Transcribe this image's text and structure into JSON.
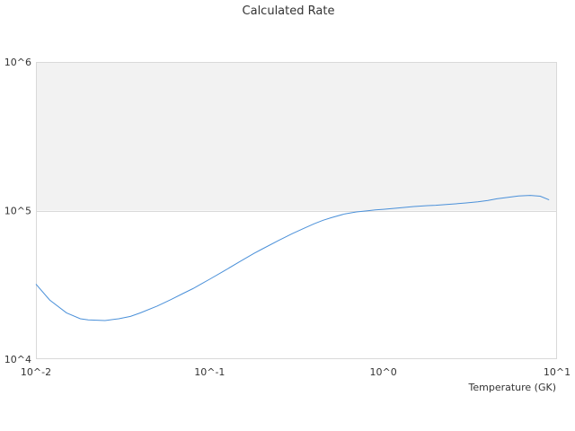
{
  "chart_data": {
    "type": "line",
    "title": "Calculated Rate",
    "xlabel": "Temperature (GK)",
    "ylabel": "",
    "x_scale": "log",
    "y_scale": "log",
    "xlim": [
      0.01,
      10
    ],
    "ylim": [
      10000,
      1000000
    ],
    "x_tick_labels": [
      "10^-2",
      "10^-1",
      "10^0",
      "10^1"
    ],
    "y_tick_labels": [
      "10^4",
      "10^5",
      "10^6"
    ],
    "shaded_band": {
      "from": 100000,
      "to": 1000000
    },
    "colors": {
      "series": "#4a90d9",
      "band": "#f2f2f2",
      "grid": "#d9d9d9"
    },
    "grid": false,
    "legend": "none",
    "series": [
      {
        "x": [
          0.01,
          0.012,
          0.015,
          0.018,
          0.02,
          0.025,
          0.03,
          0.035,
          0.04,
          0.05,
          0.06,
          0.07,
          0.08,
          0.09,
          0.1,
          0.12,
          0.15,
          0.18,
          0.2,
          0.25,
          0.3,
          0.35,
          0.4,
          0.45,
          0.5,
          0.6,
          0.7,
          0.8,
          0.9,
          1.0,
          1.2,
          1.5,
          1.8,
          2.0,
          2.5,
          3.0,
          3.5,
          4.0,
          4.5,
          5.0,
          6.0,
          7.0,
          8.0,
          9.0
        ],
        "values": [
          32000,
          25000,
          20500,
          18700,
          18400,
          18200,
          18700,
          19400,
          20500,
          22800,
          25200,
          27600,
          29800,
          32200,
          34500,
          39000,
          45500,
          51500,
          55000,
          63000,
          70000,
          76000,
          81500,
          86000,
          89500,
          95000,
          98000,
          99500,
          101000,
          102000,
          104000,
          106500,
          108000,
          108500,
          110500,
          112500,
          114500,
          117000,
          120000,
          122000,
          125500,
          126500,
          125000,
          118000
        ]
      }
    ]
  }
}
